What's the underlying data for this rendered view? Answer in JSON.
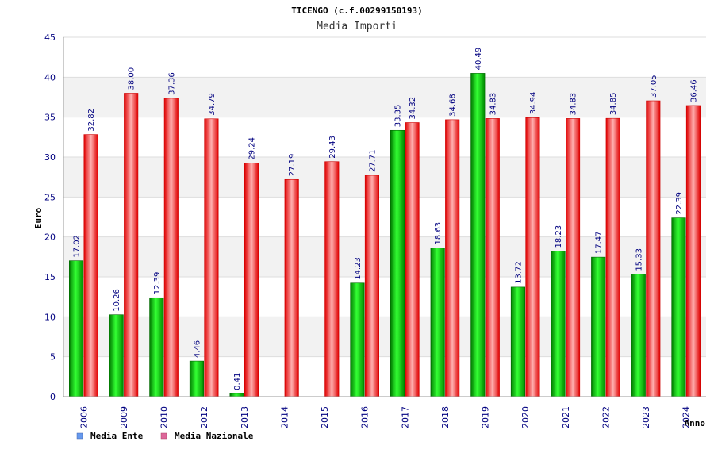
{
  "chart_data": {
    "type": "bar",
    "title": "TICENGO (c.f.00299150193)",
    "subtitle": "Media Importi",
    "xlabel": "Anno",
    "ylabel": "Euro",
    "ylim": [
      0,
      45
    ],
    "yticks": [
      "0",
      "5",
      "10",
      "15",
      "20",
      "25",
      "30",
      "35",
      "40",
      "45"
    ],
    "categories": [
      "2006",
      "2009",
      "2010",
      "2012",
      "2013",
      "2014",
      "2015",
      "2016",
      "2017",
      "2018",
      "2019",
      "2020",
      "2021",
      "2022",
      "2023",
      "2024"
    ],
    "series": [
      {
        "name": "Media Ente",
        "color": "#00c000",
        "values": [
          17.02,
          10.26,
          12.39,
          4.46,
          0.41,
          null,
          null,
          14.23,
          33.35,
          18.63,
          40.49,
          13.72,
          18.23,
          17.47,
          15.33,
          22.39
        ],
        "labels": [
          "17.02",
          "10.26",
          "12.39",
          "4.46",
          "0.41",
          null,
          null,
          "14.23",
          "33.35",
          "18.63",
          "40.49",
          "13.72",
          "18.23",
          "17.47",
          "15.33",
          "22.39"
        ]
      },
      {
        "name": "Media Nazionale",
        "color": "#ff2020",
        "values": [
          32.82,
          38.0,
          37.36,
          34.79,
          29.24,
          27.19,
          29.43,
          27.71,
          34.32,
          34.68,
          34.83,
          34.94,
          34.83,
          34.85,
          37.05,
          36.46
        ],
        "labels": [
          "32.82",
          "38.00",
          "37.36",
          "34.79",
          "29.24",
          "27.19",
          "29.43",
          "27.71",
          "34.32",
          "34.68",
          "34.83",
          "34.94",
          "34.83",
          "34.85",
          "37.05",
          "36.46"
        ]
      }
    ],
    "legend": [
      {
        "label": "Media Ente",
        "color": "#6699ee"
      },
      {
        "label": "Media Nazionale",
        "color": "#dd6699"
      }
    ],
    "grid": true,
    "legend_position": "bottom-left"
  }
}
